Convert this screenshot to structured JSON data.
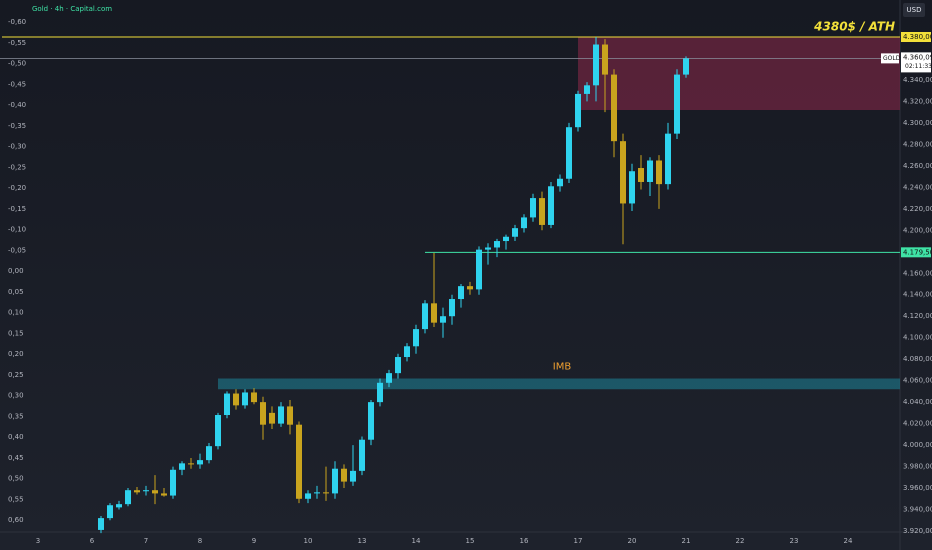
{
  "chart_data": {
    "type": "candlestick",
    "title": "Gold · 4h · Capital.com",
    "currency": "USD",
    "up_color": "#2fd3ee",
    "down_color": "#c9a41e",
    "grid": false,
    "x": [
      7,
      8,
      9,
      10,
      11,
      12,
      13,
      14,
      15,
      16,
      17,
      18,
      19,
      20,
      21,
      22,
      23,
      24,
      25,
      26,
      27,
      28,
      29,
      30,
      31,
      32,
      33,
      34,
      35,
      36,
      37,
      38,
      39,
      40,
      41,
      42,
      43,
      44,
      45,
      46,
      47,
      48,
      49,
      50,
      51,
      52,
      53,
      54,
      55,
      56,
      57,
      58,
      59,
      60,
      61,
      62,
      63,
      64,
      65,
      66,
      67,
      68,
      69,
      70,
      71,
      72
    ],
    "open": [
      3921,
      3932,
      3942,
      3945,
      3958,
      3957,
      3958,
      3955,
      3953,
      3977,
      3983,
      3982,
      3986,
      3999,
      4028,
      4048,
      4037,
      4049,
      4040,
      4030,
      4020,
      4036,
      4019,
      3950,
      3955,
      3956,
      3955,
      3978,
      3966,
      3976,
      4005,
      4040,
      4058,
      4067,
      4082,
      4092,
      4108,
      4132,
      4114,
      4120,
      4136,
      4148,
      4145,
      4182,
      4184,
      4190,
      4194,
      4202,
      4212,
      4230,
      4205,
      4241,
      4248,
      4296,
      4327,
      4335,
      4373,
      4345,
      4283,
      4225,
      4258,
      4245,
      4265,
      4243,
      4290,
      4345
    ],
    "high": [
      3934,
      3946,
      3948,
      3960,
      3961,
      3962,
      3972,
      3960,
      3980,
      3985,
      3988,
      3992,
      4002,
      4030,
      4050,
      4052,
      4052,
      4053,
      4045,
      4036,
      4040,
      4042,
      4022,
      3958,
      3962,
      3980,
      3985,
      3982,
      4000,
      4008,
      4042,
      4062,
      4070,
      4085,
      4095,
      4112,
      4135,
      4179,
      4128,
      4140,
      4150,
      4152,
      4185,
      4188,
      4192,
      4196,
      4205,
      4215,
      4234,
      4236,
      4245,
      4252,
      4300,
      4330,
      4338,
      4380,
      4378,
      4350,
      4290,
      4262,
      4270,
      4268,
      4270,
      4300,
      4350,
      4362
    ],
    "low": [
      3918,
      3930,
      3940,
      3943,
      3954,
      3953,
      3945,
      3952,
      3950,
      3972,
      3978,
      3978,
      3983,
      3996,
      4025,
      4033,
      4034,
      4038,
      4005,
      4015,
      4017,
      4010,
      3946,
      3946,
      3950,
      3948,
      3950,
      3960,
      3962,
      3972,
      4000,
      4036,
      4054,
      4062,
      4078,
      4085,
      4104,
      4110,
      4100,
      4112,
      4128,
      4140,
      4140,
      4168,
      4175,
      4182,
      4190,
      4198,
      4208,
      4200,
      4202,
      4236,
      4244,
      4292,
      4320,
      4320,
      4310,
      4268,
      4187,
      4218,
      4238,
      4232,
      4220,
      4238,
      4285,
      4342
    ],
    "close": [
      3932,
      3944,
      3945,
      3958,
      3956,
      3958,
      3955,
      3953,
      3977,
      3983,
      3982,
      3986,
      3999,
      4028,
      4048,
      4037,
      4049,
      4040,
      4019,
      4020,
      4036,
      4019,
      3950,
      3955,
      3956,
      3955,
      3978,
      3966,
      3976,
      4005,
      4040,
      4058,
      4067,
      4082,
      4092,
      4108,
      4132,
      4114,
      4120,
      4136,
      4148,
      4145,
      4182,
      4184,
      4190,
      4194,
      4202,
      4212,
      4230,
      4205,
      4241,
      4248,
      4296,
      4327,
      4335,
      4373,
      4345,
      4283,
      4225,
      4255,
      4245,
      4265,
      4243,
      4290,
      4345,
      4360
    ],
    "xlim": [
      -4,
      96
    ],
    "xticks": [
      {
        "value": 0,
        "label": "3"
      },
      {
        "value": 6,
        "label": "6"
      },
      {
        "value": 12,
        "label": "7"
      },
      {
        "value": 18,
        "label": "8"
      },
      {
        "value": 24,
        "label": "9"
      },
      {
        "value": 30,
        "label": "10"
      },
      {
        "value": 36,
        "label": "13"
      },
      {
        "value": 42,
        "label": "14"
      },
      {
        "value": 48,
        "label": "15"
      },
      {
        "value": 54,
        "label": "16"
      },
      {
        "value": 60,
        "label": "17"
      },
      {
        "value": 66,
        "label": "20"
      },
      {
        "value": 72,
        "label": "21"
      },
      {
        "value": 78,
        "label": "22"
      },
      {
        "value": 84,
        "label": "23"
      },
      {
        "value": 90,
        "label": "24"
      }
    ],
    "ylim": [
      3920,
      4380
    ],
    "yticks": [
      {
        "value": 3920,
        "label": "3.920,00"
      },
      {
        "value": 3940,
        "label": "3.940,00"
      },
      {
        "value": 3960,
        "label": "3.960,00"
      },
      {
        "value": 3980,
        "label": "3.980,00"
      },
      {
        "value": 4000,
        "label": "4.000,00"
      },
      {
        "value": 4020,
        "label": "4.020,00"
      },
      {
        "value": 4040,
        "label": "4.040,00"
      },
      {
        "value": 4060,
        "label": "4.060,00"
      },
      {
        "value": 4080,
        "label": "4.080,00"
      },
      {
        "value": 4100,
        "label": "4.100,00"
      },
      {
        "value": 4120,
        "label": "4.120,00"
      },
      {
        "value": 4140,
        "label": "4.140,00"
      },
      {
        "value": 4160,
        "label": "4.160,00"
      },
      {
        "value": 4200,
        "label": "4.200,00"
      },
      {
        "value": 4220,
        "label": "4.220,00"
      },
      {
        "value": 4240,
        "label": "4.240,00"
      },
      {
        "value": 4260,
        "label": "4.260,00"
      },
      {
        "value": 4280,
        "label": "4.280,00"
      },
      {
        "value": 4300,
        "label": "4.300,00"
      },
      {
        "value": 4320,
        "label": "4.320,00"
      },
      {
        "value": 4340,
        "label": "4.340,00"
      }
    ],
    "y2lim": [
      0.6,
      -0.6
    ],
    "y2ticks": [
      {
        "value": -0.6,
        "label": "-0,60"
      },
      {
        "value": -0.55,
        "label": "-0,55"
      },
      {
        "value": -0.5,
        "label": "-0,50"
      },
      {
        "value": -0.45,
        "label": "-0,45"
      },
      {
        "value": -0.4,
        "label": "-0,40"
      },
      {
        "value": -0.35,
        "label": "-0,35"
      },
      {
        "value": -0.3,
        "label": "-0,30"
      },
      {
        "value": -0.25,
        "label": "-0,25"
      },
      {
        "value": -0.2,
        "label": "-0,20"
      },
      {
        "value": -0.15,
        "label": "-0,15"
      },
      {
        "value": -0.1,
        "label": "-0,10"
      },
      {
        "value": -0.05,
        "label": "-0,05"
      },
      {
        "value": 0,
        "label": "0,00"
      },
      {
        "value": 0.05,
        "label": "0,05"
      },
      {
        "value": 0.1,
        "label": "0,10"
      },
      {
        "value": 0.15,
        "label": "0,15"
      },
      {
        "value": 0.2,
        "label": "0,20"
      },
      {
        "value": 0.25,
        "label": "0,25"
      },
      {
        "value": 0.3,
        "label": "0,30"
      },
      {
        "value": 0.35,
        "label": "0,35"
      },
      {
        "value": 0.4,
        "label": "0,40"
      },
      {
        "value": 0.45,
        "label": "0,45"
      },
      {
        "value": 0.5,
        "label": "0,50"
      },
      {
        "value": 0.55,
        "label": "0,55"
      },
      {
        "value": 0.6,
        "label": "0,60"
      }
    ],
    "levels": [
      {
        "value": 4380,
        "label": "4.380,00",
        "color": "#f2e03a",
        "x0": -4
      },
      {
        "value": 4179.5,
        "label": "4.179,50",
        "color": "#3fe3a6",
        "x0": 43
      }
    ],
    "last_price": {
      "value": 4360.09,
      "label": "4.360,09",
      "symbol": "GOLD",
      "countdown": "02:11:33",
      "color": "#8a8f9c"
    },
    "zones": [
      {
        "label": "IMB",
        "x0": 20,
        "y0": 4052,
        "y1": 4062,
        "color": "#1d6b7c",
        "label_color": "#f0a030"
      },
      {
        "x0": 60,
        "y0": 4312,
        "y1": 4380,
        "color": "#6e2640"
      }
    ],
    "annotation": {
      "text": "4380$ / ATH",
      "color": "#f2e03a"
    }
  }
}
